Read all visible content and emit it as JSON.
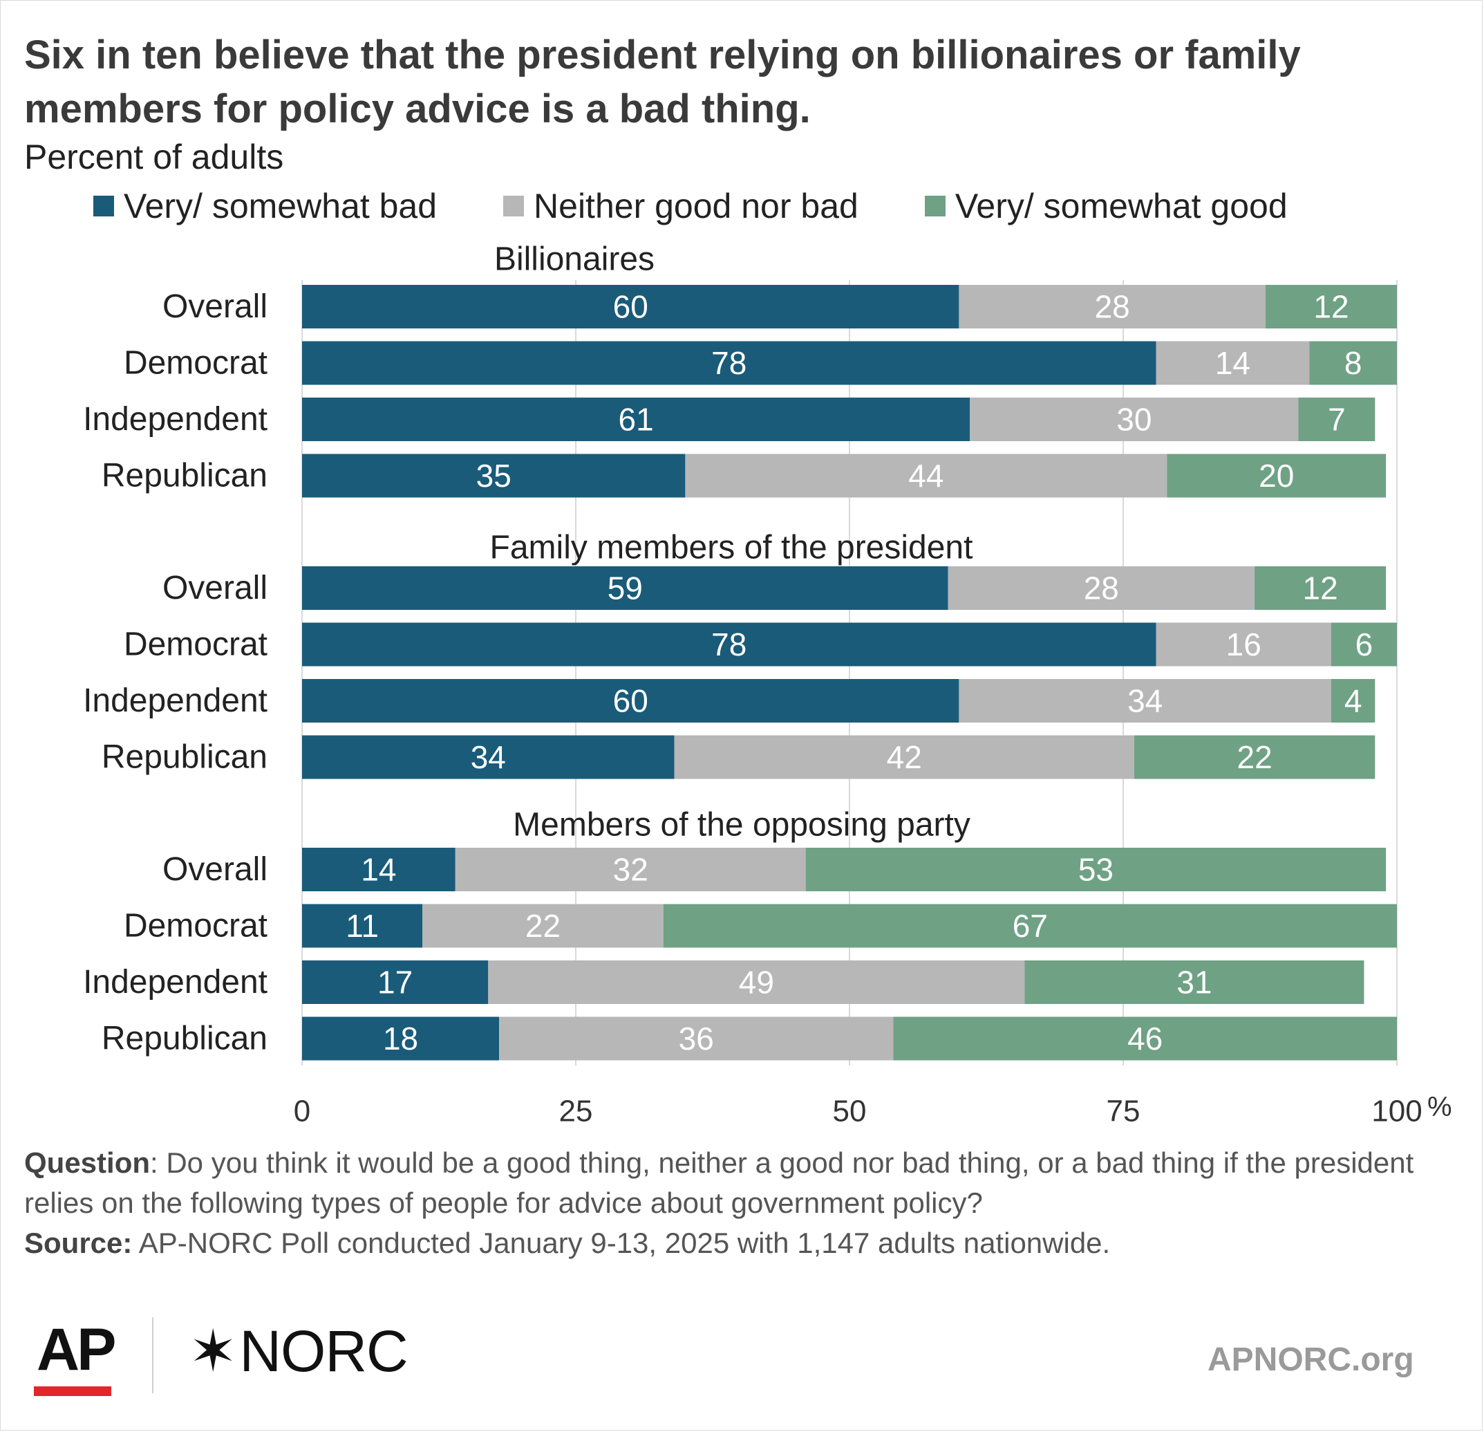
{
  "title": "Six in ten believe that the president relying on billionaires or family members for policy advice is a bad thing.",
  "subtitle": "Percent of adults",
  "legend": [
    {
      "label": "Very/ somewhat bad",
      "color": "#1a5b7a"
    },
    {
      "label": "Neither good nor bad",
      "color": "#b7b7b7"
    },
    {
      "label": "Very/ somewhat good",
      "color": "#6fa185"
    }
  ],
  "chart_data": {
    "type": "bar",
    "orientation": "horizontal",
    "stacked": true,
    "xlim": [
      0,
      100
    ],
    "x_ticks": [
      "0",
      "25",
      "50",
      "75",
      "100"
    ],
    "x_unit": "%",
    "grid": true,
    "legend_position": "top",
    "series_names": [
      "Very/ somewhat bad",
      "Neither good nor bad",
      "Very/ somewhat good"
    ],
    "groups": [
      {
        "label": "Billionaires",
        "rows": [
          {
            "category": "Overall",
            "values": [
              60,
              28,
              12
            ]
          },
          {
            "category": "Democrat",
            "values": [
              78,
              14,
              8
            ]
          },
          {
            "category": "Independent",
            "values": [
              61,
              30,
              7
            ]
          },
          {
            "category": "Republican",
            "values": [
              35,
              44,
              20
            ]
          }
        ]
      },
      {
        "label": "Family members of the president",
        "rows": [
          {
            "category": "Overall",
            "values": [
              59,
              28,
              12
            ]
          },
          {
            "category": "Democrat",
            "values": [
              78,
              16,
              6
            ]
          },
          {
            "category": "Independent",
            "values": [
              60,
              34,
              4
            ]
          },
          {
            "category": "Republican",
            "values": [
              34,
              42,
              22
            ]
          }
        ]
      },
      {
        "label": "Members of the opposing party",
        "rows": [
          {
            "category": "Overall",
            "values": [
              14,
              32,
              53
            ]
          },
          {
            "category": "Democrat",
            "values": [
              11,
              22,
              67
            ]
          },
          {
            "category": "Independent",
            "values": [
              17,
              49,
              31
            ]
          },
          {
            "category": "Republican",
            "values": [
              18,
              36,
              46
            ]
          }
        ]
      }
    ]
  },
  "footer": {
    "question_label": "Question",
    "question_text": ": Do you think it would be a good thing, neither a good nor bad thing, or a bad thing if the president relies on the following types of people for advice about government policy?",
    "source_label": "Source:",
    "source_text": " AP-NORC Poll conducted January 9-13, 2025 with 1,147 adults nationwide."
  },
  "logos": {
    "ap": "AP",
    "norc": "NORC",
    "norc_star": "✶",
    "url": "APNORC.org"
  }
}
